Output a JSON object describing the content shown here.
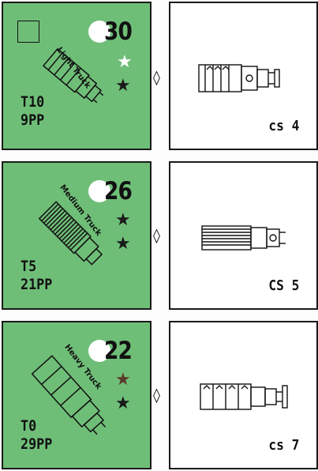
{
  "counters": [
    {
      "value": "30",
      "type_label": "Light Truck",
      "code": "T10",
      "points": "9PP",
      "back_label": "cs 4",
      "stars": [
        "white",
        "black"
      ]
    },
    {
      "value": "26",
      "type_label": "Medium Truck",
      "code": "T5",
      "points": "21PP",
      "back_label": "CS 5",
      "stars": [
        "black",
        "black"
      ]
    },
    {
      "value": "22",
      "type_label": "Heavy Truck",
      "code": "T0",
      "points": "29PP",
      "back_label": "cs 7",
      "stars": [
        "brown",
        "black"
      ]
    }
  ],
  "separator": "◊",
  "colors": {
    "counter_green": "#6fbe78",
    "ink": "#111111"
  }
}
